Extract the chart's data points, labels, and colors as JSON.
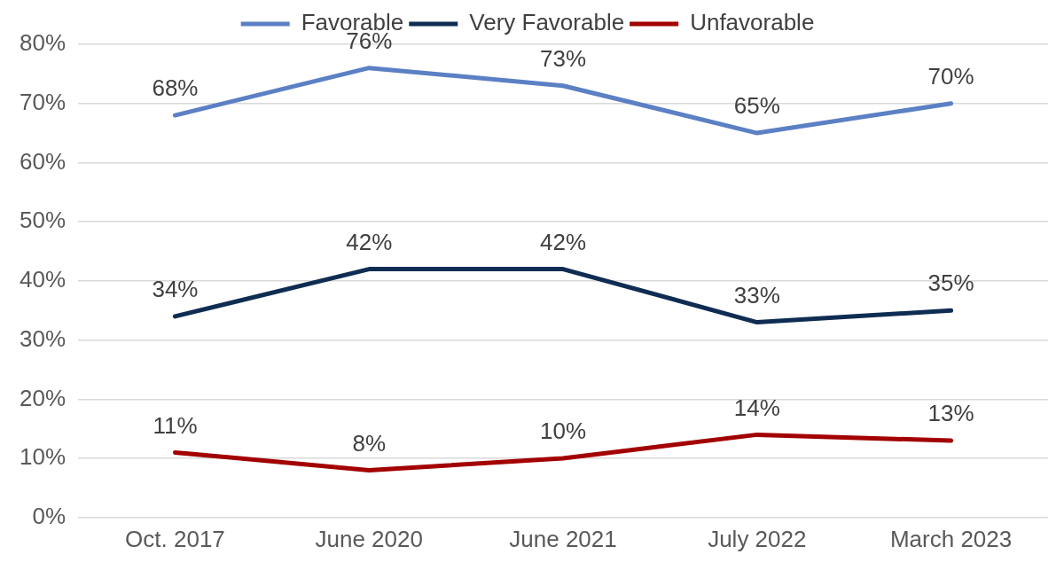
{
  "chart_data": {
    "type": "line",
    "categories": [
      "Oct. 2017",
      "June 2020",
      "June 2021",
      "July 2022",
      "March 2023"
    ],
    "series": [
      {
        "name": "Favorable",
        "color": "#5b80c4",
        "values": [
          68,
          76,
          73,
          65,
          70
        ],
        "value_labels": [
          "68%",
          "76%",
          "73%",
          "65%",
          "70%"
        ]
      },
      {
        "name": "Very Favorable",
        "color": "#0f2d52",
        "values": [
          34,
          42,
          42,
          33,
          35
        ],
        "value_labels": [
          "34%",
          "42%",
          "42%",
          "33%",
          "35%"
        ]
      },
      {
        "name": "Unfavorable",
        "color": "#a30000",
        "values": [
          11,
          8,
          10,
          14,
          13
        ],
        "value_labels": [
          "11%",
          "8%",
          "10%",
          "14%",
          "13%"
        ]
      }
    ],
    "ylim": [
      0,
      80
    ],
    "yticks": [
      {
        "value": 0,
        "label": "0%"
      },
      {
        "value": 10,
        "label": "10%"
      },
      {
        "value": 20,
        "label": "20%"
      },
      {
        "value": 30,
        "label": "30%"
      },
      {
        "value": 40,
        "label": "40%"
      },
      {
        "value": 50,
        "label": "50%"
      },
      {
        "value": 60,
        "label": "60%"
      },
      {
        "value": 70,
        "label": "70%"
      },
      {
        "value": 80,
        "label": "80%"
      }
    ],
    "grid": "y",
    "legend": "top",
    "marker": "none",
    "line_style": "solid"
  }
}
